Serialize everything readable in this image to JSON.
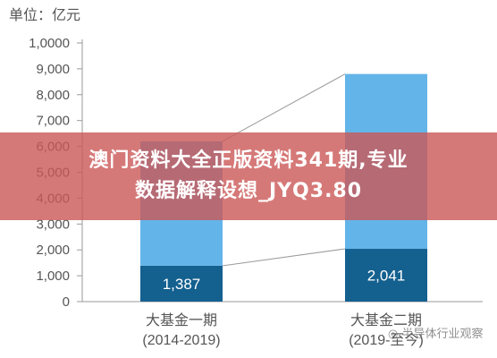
{
  "chart_data": {
    "type": "bar",
    "stacked": true,
    "unit_label": "单位：亿元",
    "categories": [
      "大基金一期\n(2014-2019)",
      "大基金二期\n(2019-至今)"
    ],
    "series": [
      {
        "values": [
          1387,
          2041
        ],
        "color": "#14608f"
      },
      {
        "values": [
          4813,
          6759
        ],
        "color": "#63b4e8"
      }
    ],
    "data_labels": [
      "1,387",
      "2,041"
    ],
    "totals": [
      6200,
      8800
    ],
    "ylim": [
      0,
      10000
    ],
    "yticks": [
      0,
      1000,
      2000,
      3000,
      4000,
      5000,
      6000,
      7000,
      8000,
      9000,
      10000
    ],
    "ytick_labels": [
      "0",
      "1,000",
      "2,000",
      "3,000",
      "4,000",
      "5,000",
      "6,000",
      "7,000",
      "8,000",
      "9,000",
      "1,0000"
    ],
    "grid": false,
    "connector_lines": true
  },
  "overlay": {
    "banner_line1": "澳门资料大全正版资料341期,专业",
    "banner_line2": "数据解释设想_JYQ3.80",
    "watermark": "半导体行业观察"
  }
}
